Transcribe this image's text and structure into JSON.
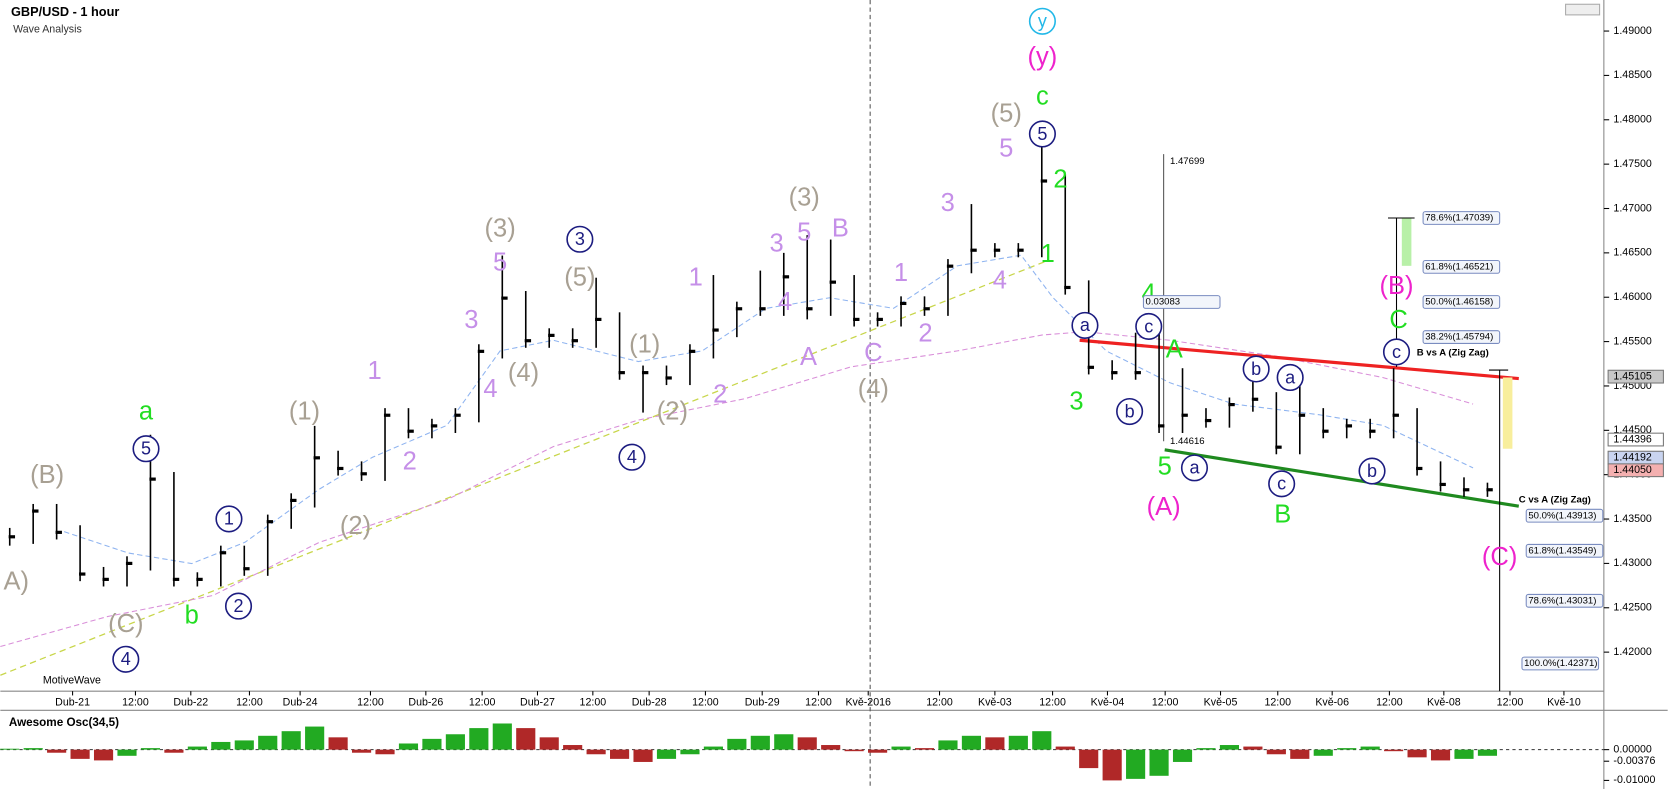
{
  "chart_data": {
    "type": "hlc",
    "title": "GBP/USD - 1 hour",
    "subtitle": "Wave Analysis",
    "brand": "MotiveWave",
    "color": "#000000",
    "grid": false,
    "xlim": [
      0,
      340
    ],
    "ylim": [
      1.4156,
      1.4935
    ],
    "xticks": [
      {
        "value": 15.4,
        "label": "Dub-21"
      },
      {
        "value": 28.8,
        "label": "12:00"
      },
      {
        "value": 40.6,
        "label": "Dub-22"
      },
      {
        "value": 53.1,
        "label": "12:00"
      },
      {
        "value": 63.9,
        "label": "Dub-24"
      },
      {
        "value": 78.9,
        "label": "12:00"
      },
      {
        "value": 90.7,
        "label": "Dub-26"
      },
      {
        "value": 102.7,
        "label": "12:00"
      },
      {
        "value": 114.5,
        "label": "Dub-27"
      },
      {
        "value": 126.3,
        "label": "12:00"
      },
      {
        "value": 138.3,
        "label": "Dub-28"
      },
      {
        "value": 150.3,
        "label": "12:00"
      },
      {
        "value": 162.4,
        "label": "Dub-29"
      },
      {
        "value": 174.4,
        "label": "12:00"
      },
      {
        "value": 185,
        "label": "Kvě-2016"
      },
      {
        "value": 200.2,
        "label": "12:00"
      },
      {
        "value": 212,
        "label": "Kvě-03"
      },
      {
        "value": 224.3,
        "label": "12:00"
      },
      {
        "value": 236,
        "label": "Kvě-04"
      },
      {
        "value": 248.3,
        "label": "12:00"
      },
      {
        "value": 260.1,
        "label": "Kvě-05"
      },
      {
        "value": 272.3,
        "label": "12:00"
      },
      {
        "value": 283.9,
        "label": "Kvě-06"
      },
      {
        "value": 296.1,
        "label": "12:00"
      },
      {
        "value": 307.7,
        "label": "Kvě-08"
      },
      {
        "value": 321.8,
        "label": "12:00"
      },
      {
        "value": 333.3,
        "label": "Kvě-10"
      }
    ],
    "yticks": [
      {
        "value": 1.42,
        "label": "1.42000"
      },
      {
        "value": 1.425,
        "label": "1.42500"
      },
      {
        "value": 1.43,
        "label": "1.43000"
      },
      {
        "value": 1.435,
        "label": "1.43500"
      },
      {
        "value": 1.44,
        "label": "1.44000"
      },
      {
        "value": 1.445,
        "label": "1.44500"
      },
      {
        "value": 1.45,
        "label": "1.45000"
      },
      {
        "value": 1.455,
        "label": "1.45500"
      },
      {
        "value": 1.46,
        "label": "1.46000"
      },
      {
        "value": 1.465,
        "label": "1.46500"
      },
      {
        "value": 1.47,
        "label": "1.47000"
      },
      {
        "value": 1.475,
        "label": "1.47500"
      },
      {
        "value": 1.48,
        "label": "1.48000"
      },
      {
        "value": 1.485,
        "label": "1.48500"
      },
      {
        "value": 1.49,
        "label": "1.49000"
      }
    ],
    "x": [
      2,
      7,
      12,
      17,
      22,
      27,
      32,
      37,
      42,
      47,
      52,
      57,
      62,
      67,
      72,
      77,
      82,
      87,
      92,
      97,
      102,
      107,
      112,
      117,
      122,
      127,
      132,
      137,
      142,
      147,
      152,
      157,
      162,
      167,
      172,
      177,
      182,
      187,
      192,
      197,
      202,
      207,
      212,
      217,
      222,
      227,
      232,
      237,
      242,
      247,
      252,
      257,
      262,
      267,
      272,
      277,
      282,
      287,
      292,
      297,
      302,
      307,
      312,
      317
    ],
    "high": [
      1.434,
      1.4367,
      1.4367,
      1.4343,
      1.4296,
      1.4308,
      1.4445,
      1.4403,
      1.429,
      1.432,
      1.432,
      1.4355,
      1.4379,
      1.4455,
      1.4427,
      1.4415,
      1.4475,
      1.4475,
      1.4463,
      1.4475,
      1.4547,
      1.4647,
      1.4607,
      1.4565,
      1.4565,
      1.4622,
      1.4583,
      1.4523,
      1.4523,
      1.4547,
      1.4625,
      1.4595,
      1.463,
      1.465,
      1.467,
      1.4665,
      1.4625,
      1.4583,
      1.4601,
      1.4601,
      1.4643,
      1.4705,
      1.4661,
      1.4661,
      1.477,
      1.4739,
      1.4619,
      1.4529,
      1.456,
      1.4575,
      1.452,
      1.4475,
      1.4487,
      1.453,
      1.4493,
      1.452,
      1.4475,
      1.4463,
      1.4463,
      1.452,
      1.4475,
      1.4415,
      1.4397,
      1.4391
    ],
    "low": [
      1.432,
      1.4322,
      1.4327,
      1.428,
      1.4274,
      1.4274,
      1.4292,
      1.4274,
      1.4274,
      1.4274,
      1.4286,
      1.4286,
      1.4339,
      1.4363,
      1.4399,
      1.4393,
      1.4393,
      1.4441,
      1.4441,
      1.4447,
      1.4459,
      1.4531,
      1.4543,
      1.4543,
      1.4543,
      1.4543,
      1.4507,
      1.447,
      1.4501,
      1.4501,
      1.4531,
      1.4555,
      1.4579,
      1.4579,
      1.4575,
      1.4579,
      1.4567,
      1.4567,
      1.4567,
      1.4579,
      1.4579,
      1.4627,
      1.4645,
      1.4645,
      1.4645,
      1.4603,
      1.4513,
      1.4507,
      1.4507,
      1.4447,
      1.4447,
      1.4453,
      1.4453,
      1.4471,
      1.4423,
      1.4423,
      1.4441,
      1.4441,
      1.4441,
      1.4441,
      1.4399,
      1.4381,
      1.4375,
      1.4375
    ],
    "close": [
      1.433,
      1.4359,
      1.4335,
      1.4288,
      1.4282,
      1.43,
      1.4395,
      1.4282,
      1.4282,
      1.4312,
      1.4294,
      1.4347,
      1.4371,
      1.4419,
      1.4407,
      1.4401,
      1.4467,
      1.4449,
      1.4455,
      1.4467,
      1.4539,
      1.4599,
      1.4551,
      1.4557,
      1.4551,
      1.4575,
      1.4515,
      1.4515,
      1.4509,
      1.4539,
      1.4563,
      1.4587,
      1.4587,
      1.4623,
      1.4587,
      1.4617,
      1.4575,
      1.4575,
      1.4593,
      1.4587,
      1.4635,
      1.4653,
      1.4653,
      1.4653,
      1.4731,
      1.4611,
      1.4521,
      1.4515,
      1.4515,
      1.4455,
      1.4467,
      1.4461,
      1.4479,
      1.4485,
      1.4431,
      1.4467,
      1.4449,
      1.4455,
      1.4449,
      1.4467,
      1.4407,
      1.4389,
      1.4383,
      1.4383
    ],
    "price_markers": [
      {
        "value": 1.45105,
        "color": "#c8c8c8"
      },
      {
        "value": 1.44396,
        "color": "#ffffff"
      },
      {
        "value": 1.44192,
        "color": "#c9d4f0"
      },
      {
        "value": 1.4405,
        "label": "1.44050",
        "color": "#f4b0b0"
      }
    ],
    "annotations": [
      {
        "text": "A)",
        "color": "#a8a093"
      },
      {
        "text": "(B)",
        "color": "#a8a093"
      },
      {
        "text": "(C)",
        "color": "#a8a093"
      },
      {
        "text": "4",
        "color": "#1c1c80",
        "circled": true
      },
      {
        "text": "5",
        "color": "#1c1c80",
        "circled": true
      },
      {
        "text": "a",
        "color": "#22dd22"
      },
      {
        "text": "b",
        "color": "#22dd22"
      },
      {
        "text": "1",
        "color": "#1c1c80",
        "circled": true
      },
      {
        "text": "2",
        "color": "#1c1c80",
        "circled": true
      },
      {
        "text": "(1)",
        "color": "#a8a093"
      },
      {
        "text": "(2)",
        "color": "#a8a093"
      },
      {
        "text": "1",
        "color": "#c58fe8"
      },
      {
        "text": "2",
        "color": "#c58fe8"
      },
      {
        "text": "3",
        "color": "#c58fe8"
      },
      {
        "text": "4",
        "color": "#c58fe8"
      },
      {
        "text": "5",
        "color": "#c58fe8"
      },
      {
        "text": "(3)",
        "color": "#a8a093"
      },
      {
        "text": "(4)",
        "color": "#a8a093"
      },
      {
        "text": "3",
        "color": "#1c1c80",
        "circled": true
      },
      {
        "text": "(5)",
        "color": "#a8a093"
      },
      {
        "text": "4",
        "color": "#1c1c80",
        "circled": true
      },
      {
        "text": "(1)",
        "color": "#a8a093"
      },
      {
        "text": "(2)",
        "color": "#a8a093"
      },
      {
        "text": "1",
        "color": "#c58fe8"
      },
      {
        "text": "2",
        "color": "#c58fe8"
      },
      {
        "text": "3",
        "color": "#c58fe8"
      },
      {
        "text": "4",
        "color": "#c58fe8"
      },
      {
        "text": "5",
        "color": "#c58fe8"
      },
      {
        "text": "(3)",
        "color": "#a8a093"
      },
      {
        "text": "B",
        "color": "#c58fe8"
      },
      {
        "text": "A",
        "color": "#c58fe8"
      },
      {
        "text": "C",
        "color": "#c58fe8"
      },
      {
        "text": "(4)",
        "color": "#a8a093"
      },
      {
        "text": "1",
        "color": "#c58fe8"
      },
      {
        "text": "2",
        "color": "#c58fe8"
      },
      {
        "text": "3",
        "color": "#c58fe8"
      },
      {
        "text": "4",
        "color": "#c58fe8"
      },
      {
        "text": "5",
        "color": "#c58fe8"
      },
      {
        "text": "(5)",
        "color": "#a8a093"
      },
      {
        "text": "5",
        "color": "#1c1c80",
        "circled": true
      },
      {
        "text": "c",
        "color": "#22dd22"
      },
      {
        "text": "(y)",
        "color": "#ee22cc"
      },
      {
        "text": "y",
        "color": "#22b8e8",
        "circled": true
      },
      {
        "text": "2",
        "color": "#22dd22"
      },
      {
        "text": "1",
        "color": "#22dd22"
      },
      {
        "text": "3",
        "color": "#22dd22"
      },
      {
        "text": "4",
        "color": "#22dd22"
      },
      {
        "text": "a",
        "color": "#1c1c80",
        "circled": true
      },
      {
        "text": "b",
        "color": "#1c1c80",
        "circled": true
      },
      {
        "text": "c",
        "color": "#1c1c80",
        "circled": true
      },
      {
        "text": "A",
        "color": "#22dd22"
      },
      {
        "text": "5",
        "color": "#22dd22"
      },
      {
        "text": "(A)",
        "color": "#ee22cc"
      },
      {
        "text": "a",
        "color": "#1c1c80",
        "circled": true
      },
      {
        "text": "b",
        "color": "#1c1c80",
        "circled": true
      },
      {
        "text": "a",
        "color": "#1c1c80",
        "circled": true
      },
      {
        "text": "c",
        "color": "#1c1c80",
        "circled": true
      },
      {
        "text": "B",
        "color": "#22dd22"
      },
      {
        "text": "b",
        "color": "#1c1c80",
        "circled": true
      },
      {
        "text": "(B)",
        "color": "#ee22cc"
      },
      {
        "text": "C",
        "color": "#22dd22"
      },
      {
        "text": "c",
        "color": "#1c1c80",
        "circled": true
      },
      {
        "text": "(C)",
        "color": "#ee22cc"
      }
    ],
    "labels": [
      "78.6%(1.47039)",
      "61.8%(1.46521)",
      "50.0%(1.46158)",
      "38.2%(1.45794)",
      "B vs A (Zig Zag)",
      "C vs A (Zig Zag)",
      "50.0%(1.43913)",
      "61.8%(1.43549)",
      "78.6%(1.43031)",
      "100.0%(1.42371)",
      "1.47699",
      "0.03083",
      "1.44616"
    ],
    "oscillator": {
      "type": "bar",
      "title": "Awesome Osc(34,5)",
      "up_color": "#22aa22",
      "down_color": "#b02828",
      "ylim": [
        -0.0121,
        0.0114
      ],
      "yticks": [
        {
          "value": 0,
          "label": "0.00000"
        },
        {
          "value": -0.00376,
          "label": "-0.00376"
        },
        {
          "value": -0.01,
          "label": "-0.01000"
        }
      ],
      "values": [
        0.0003,
        0.0005,
        -0.001,
        -0.003,
        -0.0035,
        -0.002,
        0.0005,
        -0.001,
        0.001,
        0.0025,
        0.003,
        0.0045,
        0.006,
        0.0075,
        0.004,
        -0.001,
        -0.0015,
        0.002,
        0.0035,
        0.005,
        0.007,
        0.0085,
        0.007,
        0.004,
        0.0015,
        -0.0015,
        -0.003,
        -0.004,
        -0.003,
        -0.0015,
        0.001,
        0.0035,
        0.0045,
        0.005,
        0.004,
        0.0015,
        -0.0005,
        -0.001,
        0.001,
        0.0005,
        0.003,
        0.0045,
        0.004,
        0.0045,
        0.006,
        0.001,
        -0.006,
        -0.01,
        -0.0095,
        -0.0085,
        -0.004,
        0.0005,
        0.0015,
        0.001,
        -0.0015,
        -0.003,
        -0.002,
        0.0005,
        0.001,
        -0.0005,
        -0.0025,
        -0.0035,
        -0.003,
        -0.002
      ]
    }
  }
}
